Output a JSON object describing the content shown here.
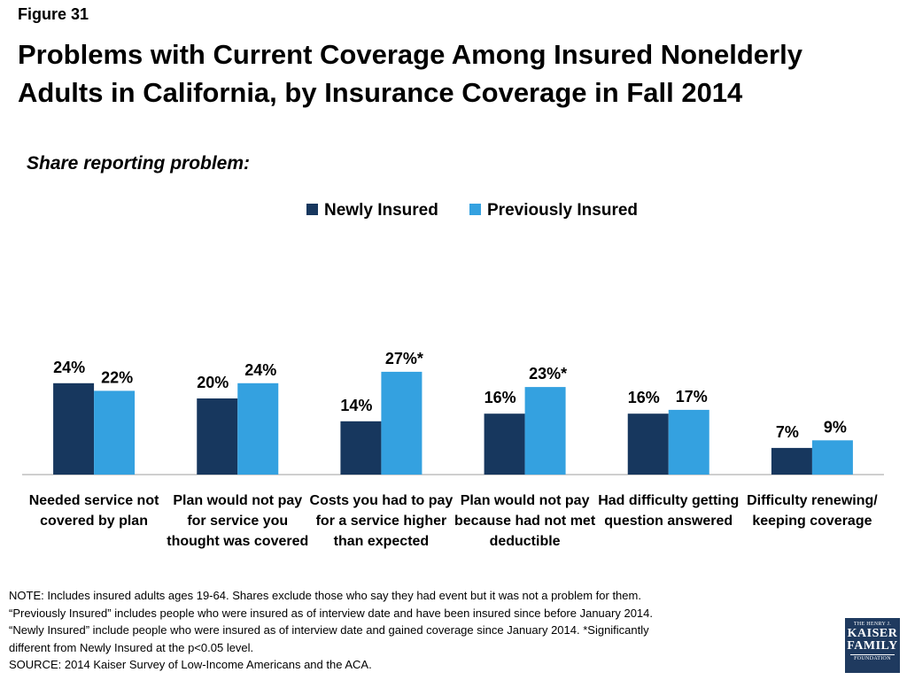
{
  "figure_label": "Figure 31",
  "title_line1": "Problems with Current Coverage Among Insured Nonelderly",
  "title_line2": "Adults in California, by Insurance Coverage in Fall 2014",
  "subtitle": "Share reporting problem:",
  "colors": {
    "newly_insured": "#17375e",
    "previously_insured": "#34a1e0",
    "axis": "#bfbfbf"
  },
  "chart_data": {
    "type": "bar",
    "categories": [
      [
        "Needed service not",
        "covered by plan"
      ],
      [
        "Plan would not pay",
        "for service you",
        "thought was covered"
      ],
      [
        "Costs you had to pay",
        "for a service higher",
        "than expected"
      ],
      [
        "Plan would not pay",
        "because had not met",
        "deductible"
      ],
      [
        "Had difficulty getting",
        "question answered"
      ],
      [
        "Difficulty renewing/",
        "keeping coverage"
      ]
    ],
    "series": [
      {
        "name": "Newly Insured",
        "values": [
          24,
          20,
          14,
          16,
          16,
          7
        ],
        "labels": [
          "24%",
          "20%",
          "14%",
          "16%",
          "16%",
          "7%"
        ]
      },
      {
        "name": "Previously Insured",
        "values": [
          22,
          24,
          27,
          23,
          17,
          9
        ],
        "labels": [
          "22%",
          "24%",
          "27%*",
          "23%*",
          "17%",
          "9%"
        ]
      }
    ],
    "ylim": [
      0,
      100
    ],
    "legend_position": "top-center",
    "grid": false
  },
  "notes": [
    "NOTE: Includes insured adults ages 19-64. Shares exclude those who say they had event but it was not a problem for them.",
    "“Previously Insured” includes people who were insured as of interview date and have been insured since before January 2014.",
    "“Newly Insured” include people who were insured as of interview date and gained coverage since January 2014. *Significantly",
    "different from Newly Insured at the p<0.05 level.",
    "SOURCE: 2014 Kaiser Survey of Low-Income Americans and the ACA."
  ],
  "logo": {
    "line1": "THE HENRY J.",
    "line2": "KAISER",
    "line3": "FAMILY",
    "line4": "FOUNDATION"
  }
}
